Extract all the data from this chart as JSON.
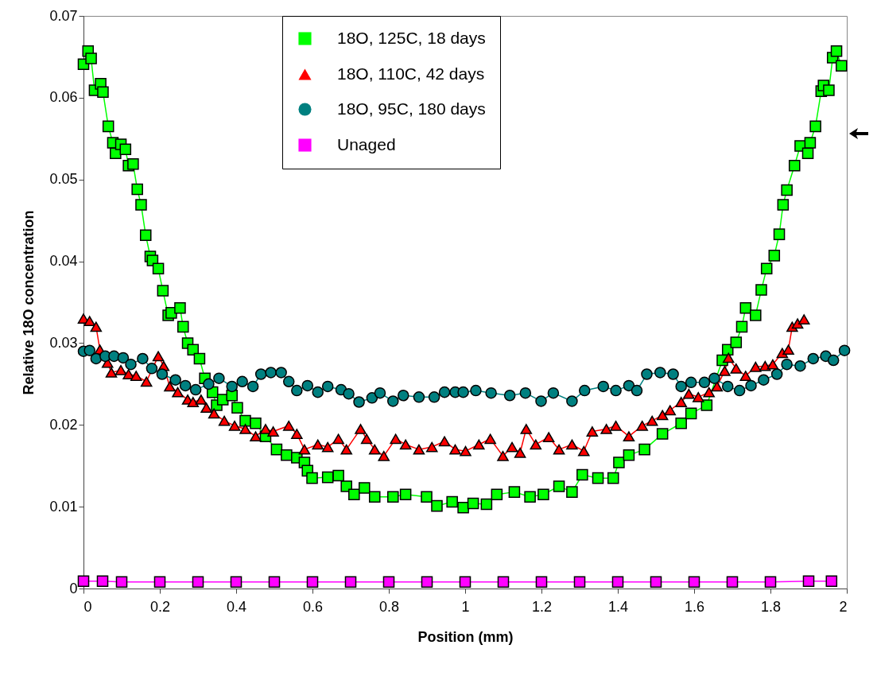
{
  "chart_data": {
    "type": "line",
    "xlabel": "Position (mm)",
    "ylabel": "Relative 18O concentration",
    "xlim": [
      0,
      2
    ],
    "ylim": [
      0,
      0.07
    ],
    "xticks": [
      0,
      0.2,
      0.4,
      0.6,
      0.8,
      1,
      1.2,
      1.4,
      1.6,
      1.8,
      2
    ],
    "yticks": [
      0,
      0.01,
      0.02,
      0.03,
      0.04,
      0.05,
      0.06,
      0.07
    ],
    "grid": false,
    "legend": "top",
    "series": [
      {
        "name": "18O, 125C, 18 days",
        "color": "#00ff00",
        "marker": "square",
        "x": [
          0,
          0.012,
          0.02,
          0.029,
          0.045,
          0.051,
          0.065,
          0.077,
          0.084,
          0.098,
          0.11,
          0.118,
          0.13,
          0.141,
          0.151,
          0.163,
          0.175,
          0.181,
          0.196,
          0.208,
          0.222,
          0.23,
          0.253,
          0.261,
          0.273,
          0.287,
          0.304,
          0.318,
          0.338,
          0.349,
          0.365,
          0.389,
          0.403,
          0.424,
          0.451,
          0.477,
          0.506,
          0.532,
          0.559,
          0.579,
          0.587,
          0.599,
          0.64,
          0.668,
          0.689,
          0.709,
          0.736,
          0.763,
          0.811,
          0.844,
          0.899,
          0.926,
          0.966,
          0.995,
          1.021,
          1.056,
          1.083,
          1.129,
          1.17,
          1.205,
          1.246,
          1.28,
          1.307,
          1.348,
          1.388,
          1.403,
          1.429,
          1.47,
          1.517,
          1.566,
          1.592,
          1.633,
          1.674,
          1.688,
          1.71,
          1.725,
          1.735,
          1.761,
          1.776,
          1.79,
          1.81,
          1.823,
          1.833,
          1.843,
          1.863,
          1.878,
          1.898,
          1.904,
          1.918,
          1.933,
          1.939,
          1.953,
          1.963,
          1.973,
          1.986
        ],
        "values": [
          0.0641,
          0.0657,
          0.0648,
          0.0609,
          0.0617,
          0.0607,
          0.0565,
          0.0545,
          0.0532,
          0.0543,
          0.0537,
          0.0517,
          0.0519,
          0.0488,
          0.0469,
          0.0432,
          0.0406,
          0.0401,
          0.0391,
          0.0364,
          0.0334,
          0.0337,
          0.0343,
          0.032,
          0.03,
          0.0292,
          0.0281,
          0.0257,
          0.024,
          0.0224,
          0.0231,
          0.0236,
          0.0221,
          0.0205,
          0.0202,
          0.0186,
          0.017,
          0.0163,
          0.016,
          0.0154,
          0.0144,
          0.0135,
          0.0136,
          0.0138,
          0.0125,
          0.0115,
          0.0123,
          0.0112,
          0.0112,
          0.0115,
          0.0112,
          0.0101,
          0.0106,
          0.0099,
          0.0104,
          0.0103,
          0.0115,
          0.0118,
          0.0112,
          0.0115,
          0.0125,
          0.0118,
          0.0139,
          0.0135,
          0.0135,
          0.0154,
          0.0163,
          0.017,
          0.0189,
          0.0202,
          0.0214,
          0.0224,
          0.0279,
          0.0292,
          0.0301,
          0.032,
          0.0343,
          0.0334,
          0.0365,
          0.0391,
          0.0407,
          0.0433,
          0.0469,
          0.0487,
          0.0517,
          0.0541,
          0.0532,
          0.0545,
          0.0565,
          0.0608,
          0.0615,
          0.0609,
          0.0649,
          0.0657,
          0.0639
        ]
      },
      {
        "name": "18O, 110C, 42 days",
        "color": "#ff0000",
        "marker": "triangle",
        "x": [
          0,
          0.016,
          0.033,
          0.043,
          0.063,
          0.073,
          0.098,
          0.118,
          0.138,
          0.165,
          0.196,
          0.21,
          0.226,
          0.247,
          0.273,
          0.287,
          0.308,
          0.322,
          0.342,
          0.369,
          0.396,
          0.424,
          0.451,
          0.477,
          0.497,
          0.538,
          0.559,
          0.579,
          0.614,
          0.64,
          0.668,
          0.689,
          0.726,
          0.742,
          0.763,
          0.787,
          0.818,
          0.844,
          0.879,
          0.913,
          0.946,
          0.974,
          1.001,
          1.036,
          1.066,
          1.099,
          1.123,
          1.144,
          1.16,
          1.185,
          1.219,
          1.246,
          1.28,
          1.311,
          1.333,
          1.37,
          1.395,
          1.429,
          1.464,
          1.49,
          1.517,
          1.537,
          1.566,
          1.586,
          1.611,
          1.639,
          1.66,
          1.68,
          1.69,
          1.71,
          1.735,
          1.761,
          1.786,
          1.806,
          1.831,
          1.847,
          1.857,
          1.871,
          1.888
        ],
        "values": [
          0.033,
          0.0327,
          0.032,
          0.0292,
          0.0276,
          0.0264,
          0.0267,
          0.0262,
          0.026,
          0.0253,
          0.0284,
          0.0272,
          0.0247,
          0.024,
          0.0231,
          0.0228,
          0.0231,
          0.0221,
          0.0214,
          0.0205,
          0.0199,
          0.0195,
          0.0186,
          0.0195,
          0.0192,
          0.0199,
          0.0189,
          0.017,
          0.0176,
          0.0173,
          0.0183,
          0.017,
          0.0195,
          0.0183,
          0.017,
          0.0162,
          0.0183,
          0.0176,
          0.017,
          0.0173,
          0.018,
          0.017,
          0.0168,
          0.0176,
          0.0183,
          0.0162,
          0.0173,
          0.0166,
          0.0195,
          0.0176,
          0.0185,
          0.017,
          0.0176,
          0.0168,
          0.0192,
          0.0195,
          0.0199,
          0.0186,
          0.0199,
          0.0205,
          0.0212,
          0.0218,
          0.0228,
          0.0238,
          0.0234,
          0.024,
          0.0247,
          0.0266,
          0.0282,
          0.0269,
          0.026,
          0.0271,
          0.0272,
          0.0274,
          0.0288,
          0.0292,
          0.032,
          0.0324,
          0.0329
        ]
      },
      {
        "name": "18O, 95C, 180 days",
        "color": "#008080",
        "marker": "circle",
        "x": [
          0,
          0.016,
          0.033,
          0.057,
          0.08,
          0.104,
          0.124,
          0.155,
          0.179,
          0.206,
          0.241,
          0.267,
          0.294,
          0.328,
          0.355,
          0.389,
          0.416,
          0.444,
          0.465,
          0.491,
          0.518,
          0.538,
          0.559,
          0.587,
          0.614,
          0.64,
          0.675,
          0.695,
          0.722,
          0.756,
          0.777,
          0.811,
          0.838,
          0.879,
          0.919,
          0.946,
          0.974,
          0.995,
          1.028,
          1.068,
          1.117,
          1.158,
          1.199,
          1.231,
          1.28,
          1.313,
          1.362,
          1.395,
          1.429,
          1.45,
          1.476,
          1.511,
          1.545,
          1.566,
          1.592,
          1.627,
          1.653,
          1.688,
          1.719,
          1.749,
          1.782,
          1.817,
          1.843,
          1.878,
          1.912,
          1.945,
          1.965,
          1.994
        ],
        "values": [
          0.029,
          0.0291,
          0.0281,
          0.0284,
          0.0284,
          0.0282,
          0.0274,
          0.0281,
          0.0269,
          0.0262,
          0.0255,
          0.0248,
          0.0243,
          0.025,
          0.0257,
          0.0247,
          0.0253,
          0.0247,
          0.0262,
          0.0264,
          0.0264,
          0.0253,
          0.0242,
          0.0248,
          0.024,
          0.0247,
          0.0243,
          0.0238,
          0.0228,
          0.0233,
          0.0239,
          0.0229,
          0.0236,
          0.0234,
          0.0234,
          0.024,
          0.024,
          0.024,
          0.0242,
          0.0239,
          0.0236,
          0.0239,
          0.0229,
          0.0239,
          0.0229,
          0.0242,
          0.0247,
          0.0242,
          0.0248,
          0.0242,
          0.0262,
          0.0264,
          0.0262,
          0.0247,
          0.0252,
          0.0252,
          0.0257,
          0.0247,
          0.0242,
          0.0248,
          0.0255,
          0.0262,
          0.0274,
          0.0272,
          0.0281,
          0.0284,
          0.0279,
          0.0291
        ]
      },
      {
        "name": "Unaged",
        "color": "#ff00ff",
        "marker": "square",
        "x": [
          0,
          0.05,
          0.1,
          0.2,
          0.3,
          0.4,
          0.5,
          0.6,
          0.7,
          0.8,
          0.9,
          1,
          1.1,
          1.2,
          1.3,
          1.4,
          1.5,
          1.6,
          1.7,
          1.8,
          1.9,
          1.96
        ],
        "values": [
          0.0009,
          0.0009,
          0.0008,
          0.0008,
          0.0008,
          0.0008,
          0.0008,
          0.0008,
          0.0008,
          0.0008,
          0.0008,
          0.0008,
          0.0008,
          0.0008,
          0.0008,
          0.0008,
          0.0008,
          0.0008,
          0.0008,
          0.0008,
          0.0009,
          0.0009
        ]
      }
    ]
  }
}
